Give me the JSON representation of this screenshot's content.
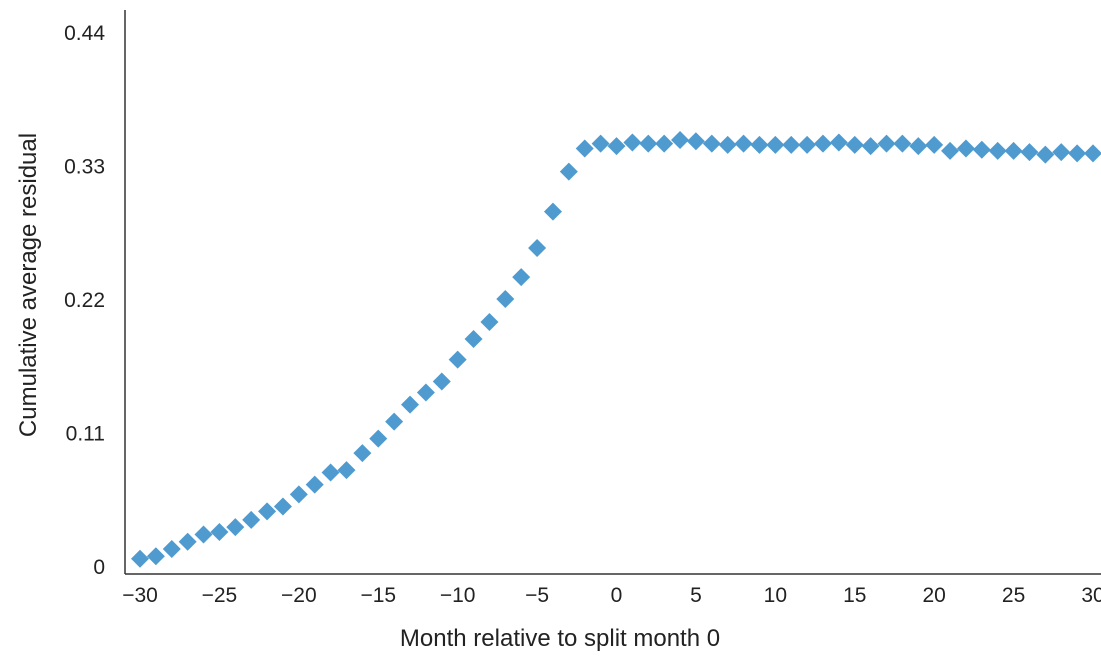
{
  "chart_data": {
    "type": "scatter",
    "title": "",
    "xlabel": "Month relative to split month 0",
    "ylabel": "Cumulative average residual",
    "xlim": [
      -30,
      30
    ],
    "ylim": [
      0,
      0.44
    ],
    "x_ticks": [
      {
        "value": -30,
        "label": "−30"
      },
      {
        "value": -25,
        "label": "−25"
      },
      {
        "value": -20,
        "label": "−20"
      },
      {
        "value": -15,
        "label": "−15"
      },
      {
        "value": -10,
        "label": "−10"
      },
      {
        "value": -5,
        "label": "−5"
      },
      {
        "value": 0,
        "label": "0"
      },
      {
        "value": 5,
        "label": "5"
      },
      {
        "value": 10,
        "label": "10"
      },
      {
        "value": 15,
        "label": "15"
      },
      {
        "value": 20,
        "label": "20"
      },
      {
        "value": 25,
        "label": "25"
      },
      {
        "value": 30,
        "label": "30"
      }
    ],
    "y_ticks": [
      {
        "value": 0,
        "label": "0"
      },
      {
        "value": 0.11,
        "label": "0.11"
      },
      {
        "value": 0.22,
        "label": "0.22"
      },
      {
        "value": 0.33,
        "label": "0.33"
      },
      {
        "value": 0.44,
        "label": "0.44"
      }
    ],
    "grid": false,
    "legend": "none",
    "marker": "diamond",
    "color": "#4f9bd0",
    "series": [
      {
        "x": [
          -30,
          -29,
          -28,
          -27,
          -26,
          -25,
          -24,
          -23,
          -22,
          -21,
          -20,
          -19,
          -18,
          -17,
          -16,
          -15,
          -14,
          -13,
          -12,
          -11,
          -10,
          -9,
          -8,
          -7,
          -6,
          -5,
          -4,
          -3,
          -2,
          -1,
          0,
          1,
          2,
          3,
          4,
          5,
          6,
          7,
          8,
          9,
          10,
          11,
          12,
          13,
          14,
          15,
          16,
          17,
          18,
          19,
          20,
          21,
          22,
          23,
          24,
          25,
          26,
          27,
          28,
          29,
          30
        ],
        "y": [
          0.006,
          0.008,
          0.014,
          0.02,
          0.026,
          0.028,
          0.032,
          0.038,
          0.045,
          0.049,
          0.059,
          0.067,
          0.077,
          0.079,
          0.093,
          0.105,
          0.119,
          0.133,
          0.143,
          0.152,
          0.17,
          0.187,
          0.201,
          0.22,
          0.238,
          0.262,
          0.292,
          0.325,
          0.344,
          0.348,
          0.346,
          0.349,
          0.348,
          0.348,
          0.351,
          0.35,
          0.348,
          0.347,
          0.348,
          0.347,
          0.347,
          0.347,
          0.347,
          0.348,
          0.349,
          0.347,
          0.346,
          0.348,
          0.348,
          0.346,
          0.347,
          0.342,
          0.344,
          0.343,
          0.342,
          0.342,
          0.341,
          0.339,
          0.341,
          0.34,
          0.34
        ]
      }
    ]
  }
}
